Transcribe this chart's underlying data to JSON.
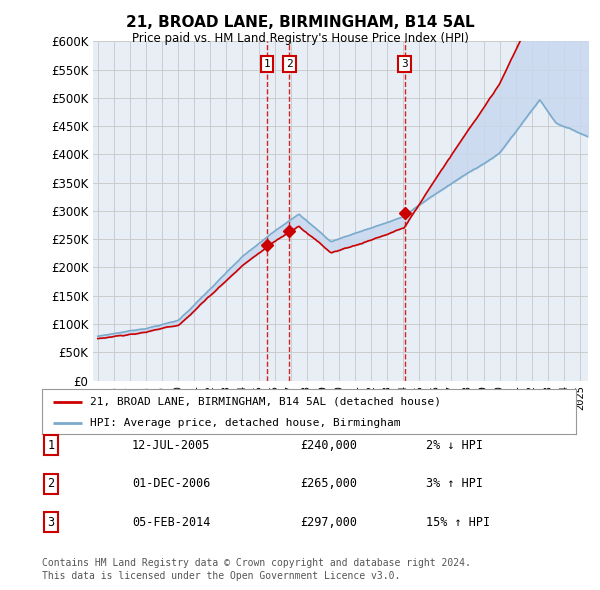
{
  "title": "21, BROAD LANE, BIRMINGHAM, B14 5AL",
  "subtitle": "Price paid vs. HM Land Registry's House Price Index (HPI)",
  "ylim": [
    0,
    600000
  ],
  "xlim_start": 1994.7,
  "xlim_end": 2025.5,
  "background_color": "#ffffff",
  "grid_color": "#cccccc",
  "plot_bg_color": "#e8eef5",
  "red_line_color": "#cc0000",
  "blue_line_color": "#7aaacc",
  "fill_color": "#c8d8ee",
  "transactions": [
    {
      "num": 1,
      "date": "12-JUL-2005",
      "year": 2005.53,
      "price": 240000,
      "pct": "2%",
      "dir": "↓"
    },
    {
      "num": 2,
      "date": "01-DEC-2006",
      "year": 2006.92,
      "price": 265000,
      "pct": "3%",
      "dir": "↑"
    },
    {
      "num": 3,
      "date": "05-FEB-2014",
      "year": 2014.09,
      "price": 297000,
      "pct": "15%",
      "dir": "↑"
    }
  ],
  "legend_line1": "21, BROAD LANE, BIRMINGHAM, B14 5AL (detached house)",
  "legend_line2": "HPI: Average price, detached house, Birmingham",
  "footnote": "Contains HM Land Registry data © Crown copyright and database right 2024.\nThis data is licensed under the Open Government Licence v3.0.",
  "table_rows": [
    {
      "num": 1,
      "date": "12-JUL-2005",
      "price": "£240,000",
      "pct": "2% ↓ HPI"
    },
    {
      "num": 2,
      "date": "01-DEC-2006",
      "price": "£265,000",
      "pct": "3% ↑ HPI"
    },
    {
      "num": 3,
      "date": "05-FEB-2014",
      "price": "£297,000",
      "pct": "15% ↑ HPI"
    }
  ]
}
